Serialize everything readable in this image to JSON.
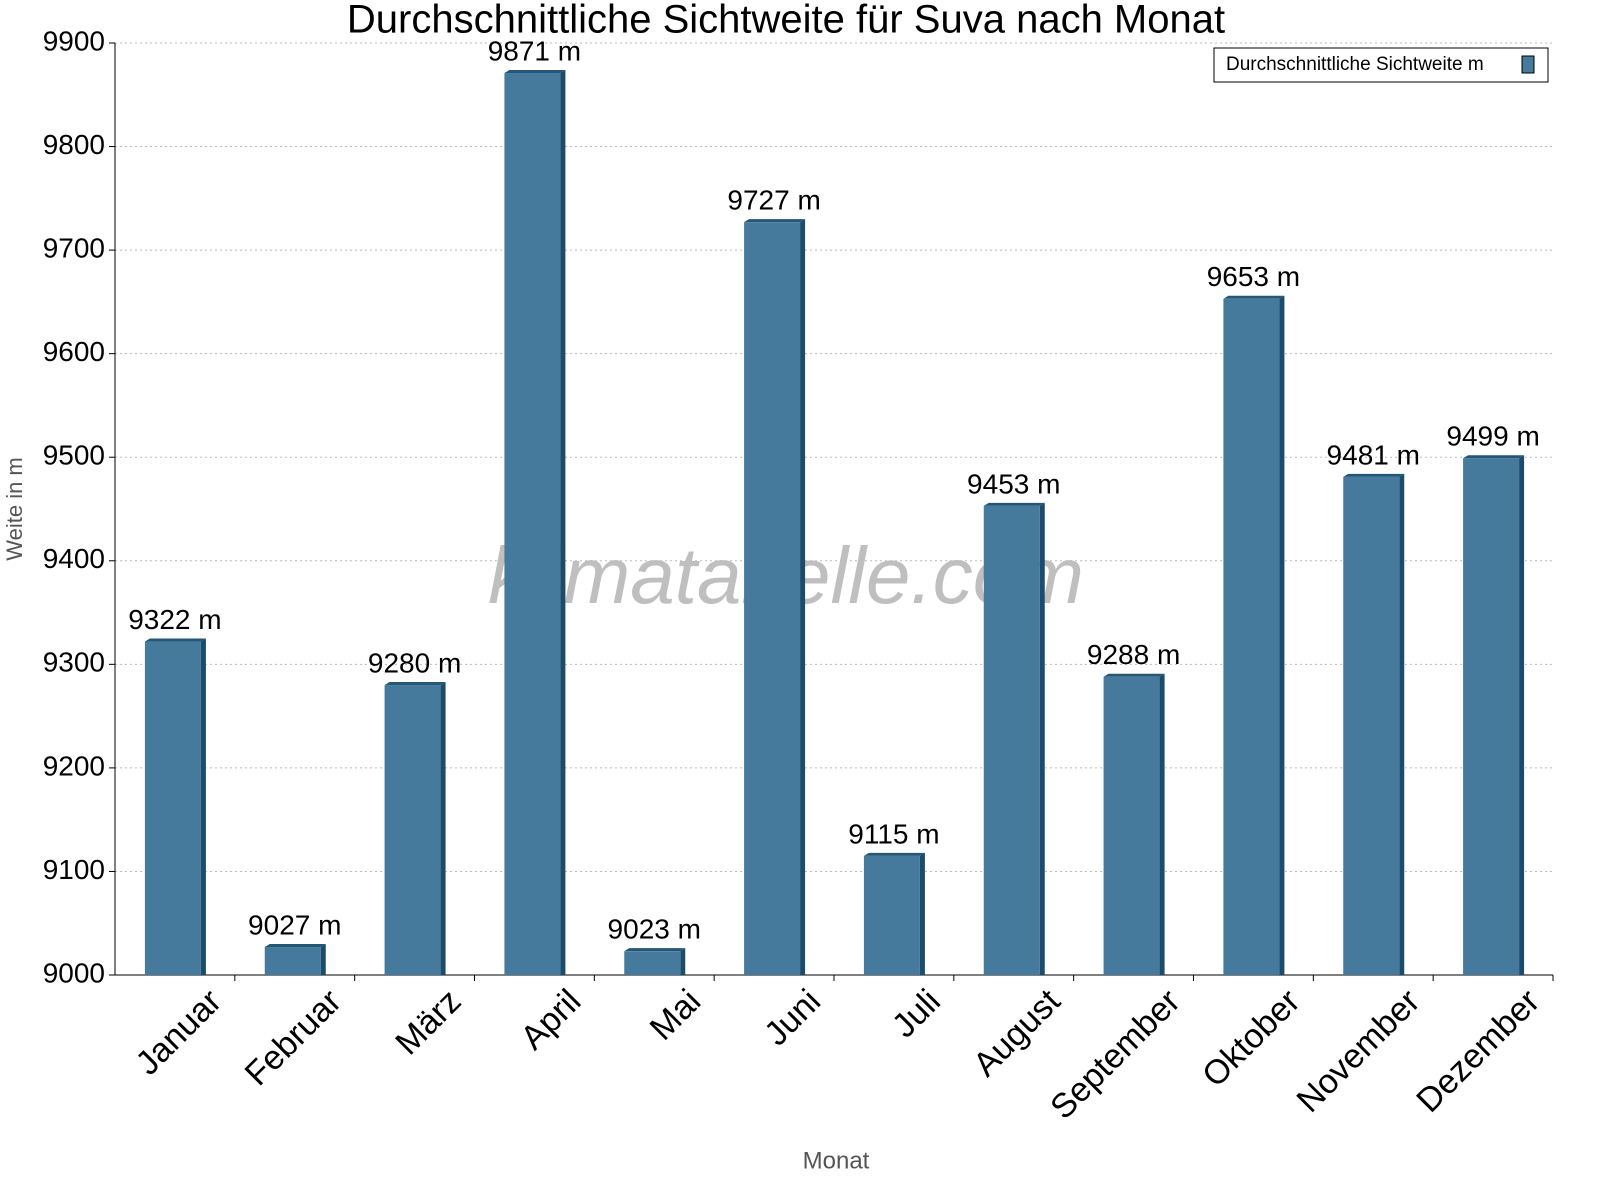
{
  "chart_data": {
    "type": "bar",
    "title": "Durchschnittliche Sichtweite für Suva nach Monat",
    "x_label": "Monat",
    "y_label": "Weite in m",
    "watermark": "klimatabelle.com",
    "categories": [
      "Januar",
      "Februar",
      "März",
      "April",
      "Mai",
      "Juni",
      "Juli",
      "August",
      "September",
      "Oktober",
      "November",
      "Dezember"
    ],
    "series": [
      {
        "name": "Durchschnittliche Sichtweite m",
        "color": "#467a9c",
        "values": [
          9322,
          9027,
          9280,
          9871,
          9023,
          9727,
          9115,
          9453,
          9288,
          9653,
          9481,
          9499
        ],
        "value_labels": [
          "9322 m",
          "9027 m",
          "9280 m",
          "9871 m",
          "9023 m",
          "9727 m",
          "9115 m",
          "9453 m",
          "9288 m",
          "9653 m",
          "9481 m",
          "9499 m"
        ]
      }
    ],
    "ylim": [
      9000,
      9900
    ],
    "yticks": [
      9000,
      9100,
      9200,
      9300,
      9400,
      9500,
      9600,
      9700,
      9800,
      9900
    ],
    "grid": true,
    "legend": "top-right"
  }
}
